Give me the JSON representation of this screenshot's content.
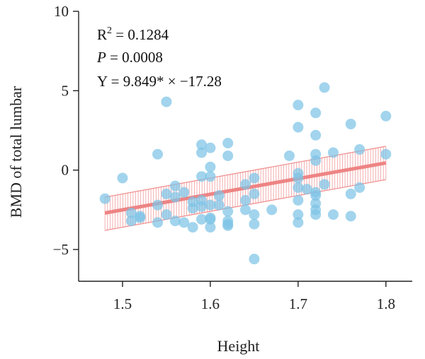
{
  "chart_data": {
    "type": "scatter",
    "xlabel": "Height",
    "ylabel": "BMD of total lumbar",
    "xlim": [
      1.45,
      1.83
    ],
    "ylim": [
      -7,
      10
    ],
    "xticks": [
      1.5,
      1.6,
      1.7,
      1.8
    ],
    "yticks": [
      -5,
      0,
      5,
      10
    ],
    "xtick_labels": [
      "1.5",
      "1.6",
      "1.7",
      "1.8"
    ],
    "ytick_labels": [
      "−5",
      "0",
      "5",
      "10"
    ],
    "grid": false,
    "colors": {
      "points": "#7ec3e6",
      "fit": "#ee7f7f",
      "band": "#f08a8a"
    },
    "annotations": {
      "r2_prefix": "R",
      "r2_sup": "2",
      "r2_value": " = 0.1284",
      "p_label": "P",
      "p_value": " = 0.0008",
      "equation": "Y = 9.849* × −17.28"
    },
    "fit": {
      "x": [
        1.48,
        1.8
      ],
      "y": [
        -2.7,
        0.45
      ]
    },
    "ci_band": {
      "x": [
        1.48,
        1.8
      ],
      "upper": [
        -1.7,
        1.5
      ],
      "lower": [
        -3.8,
        -0.6
      ]
    },
    "points": [
      [
        1.48,
        -1.8
      ],
      [
        1.5,
        -0.5
      ],
      [
        1.51,
        -2.7
      ],
      [
        1.51,
        -3.2
      ],
      [
        1.52,
        -2.9
      ],
      [
        1.52,
        -3.0
      ],
      [
        1.54,
        1.0
      ],
      [
        1.54,
        -2.2
      ],
      [
        1.54,
        -3.3
      ],
      [
        1.55,
        4.3
      ],
      [
        1.55,
        -1.5
      ],
      [
        1.55,
        -2.8
      ],
      [
        1.56,
        -1.0
      ],
      [
        1.56,
        -1.7
      ],
      [
        1.56,
        -3.2
      ],
      [
        1.57,
        -1.4
      ],
      [
        1.57,
        -3.3
      ],
      [
        1.58,
        -2.0
      ],
      [
        1.58,
        -2.4
      ],
      [
        1.58,
        -3.6
      ],
      [
        1.59,
        1.6
      ],
      [
        1.59,
        1.1
      ],
      [
        1.59,
        -0.4
      ],
      [
        1.59,
        -1.9
      ],
      [
        1.59,
        -2.3
      ],
      [
        1.59,
        -3.1
      ],
      [
        1.6,
        1.4
      ],
      [
        1.6,
        0.2
      ],
      [
        1.6,
        -0.4
      ],
      [
        1.6,
        -2.2
      ],
      [
        1.6,
        -3.0
      ],
      [
        1.6,
        -3.1
      ],
      [
        1.6,
        -3.6
      ],
      [
        1.61,
        -1.6
      ],
      [
        1.61,
        -2.2
      ],
      [
        1.62,
        1.7
      ],
      [
        1.62,
        0.9
      ],
      [
        1.62,
        -2.6
      ],
      [
        1.62,
        -3.2
      ],
      [
        1.62,
        -3.4
      ],
      [
        1.62,
        -3.5
      ],
      [
        1.64,
        -0.9
      ],
      [
        1.64,
        -1.9
      ],
      [
        1.64,
        -2.5
      ],
      [
        1.65,
        -0.5
      ],
      [
        1.65,
        -1.5
      ],
      [
        1.65,
        -2.8
      ],
      [
        1.65,
        -3.4
      ],
      [
        1.65,
        -5.6
      ],
      [
        1.67,
        -2.5
      ],
      [
        1.69,
        0.9
      ],
      [
        1.7,
        4.1
      ],
      [
        1.7,
        2.7
      ],
      [
        1.7,
        -0.2
      ],
      [
        1.7,
        -0.5
      ],
      [
        1.7,
        -1.1
      ],
      [
        1.7,
        -1.9
      ],
      [
        1.7,
        -2.8
      ],
      [
        1.7,
        -3.3
      ],
      [
        1.71,
        -1.2
      ],
      [
        1.72,
        3.6
      ],
      [
        1.72,
        2.2
      ],
      [
        1.72,
        1.0
      ],
      [
        1.72,
        0.6
      ],
      [
        1.72,
        -1.4
      ],
      [
        1.72,
        -1.6
      ],
      [
        1.72,
        -2.1
      ],
      [
        1.72,
        -2.5
      ],
      [
        1.72,
        -2.8
      ],
      [
        1.73,
        5.2
      ],
      [
        1.73,
        -0.9
      ],
      [
        1.74,
        1.1
      ],
      [
        1.74,
        -2.8
      ],
      [
        1.76,
        2.9
      ],
      [
        1.76,
        -1.5
      ],
      [
        1.76,
        -2.9
      ],
      [
        1.77,
        1.3
      ],
      [
        1.77,
        -1.1
      ],
      [
        1.8,
        3.4
      ],
      [
        1.8,
        1.0
      ]
    ]
  }
}
